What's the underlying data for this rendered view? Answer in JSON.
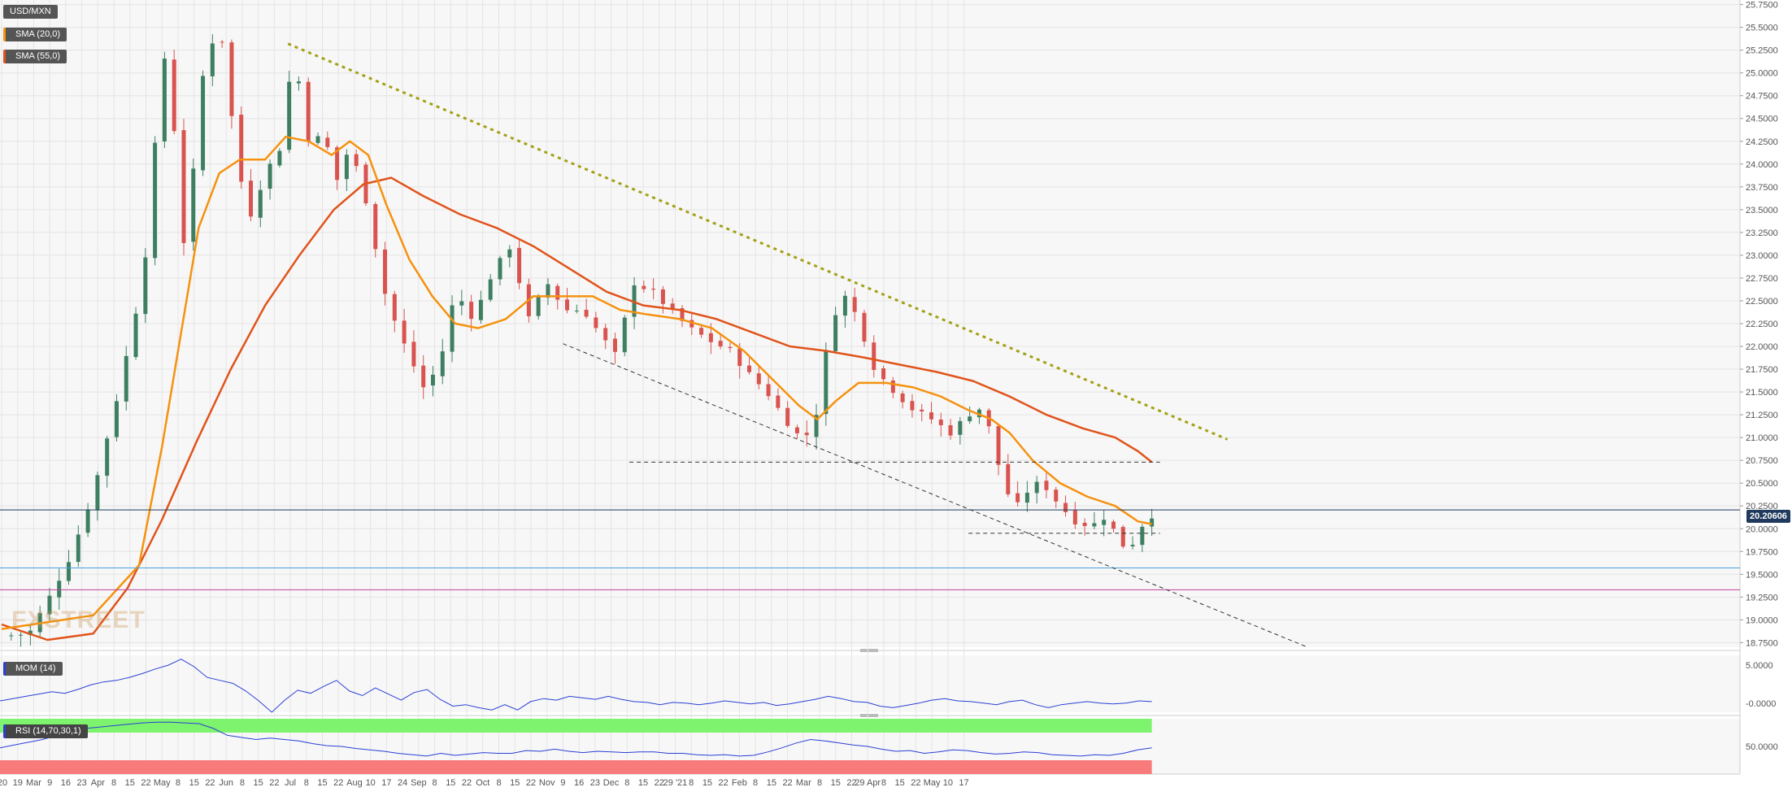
{
  "colors": {
    "background": "#f7f7f7",
    "grid": "#e4e4e4",
    "up": "#3e7f62",
    "down": "#d9534f",
    "sma20": "#f5920f",
    "sma55": "#e0541b",
    "trend_resistance": "#a3a013",
    "dashed": "#333333",
    "support_blue": "#4aa3df",
    "support_magenta": "#c2409b",
    "indicator_line": "#2b3fd6",
    "rsi_overbought": "#7ef36e",
    "rsi_oversold": "#f77b7b",
    "tag_bg": "#555555",
    "price_tag_bg": "#1f3a5c"
  },
  "labels": {
    "symbol": "USD/MXN",
    "sma20": "SMA (20,0)",
    "sma55": "SMA (55,0)",
    "mom": "MOM (14)",
    "rsi": "RSI (14,70,30,1)",
    "last_price": "20.20606",
    "watermark": "FXSTREET"
  },
  "chart_data": [
    {
      "type": "candlestick",
      "title": "USD/MXN",
      "ylim": [
        18.7,
        25.8
      ],
      "y_ticks": [
        "18.7500",
        "19.0000",
        "19.2500",
        "19.5000",
        "19.7500",
        "20.0000",
        "20.2500",
        "20.5000",
        "20.7500",
        "21.0000",
        "21.2500",
        "21.5000",
        "21.7500",
        "22.0000",
        "22.2500",
        "22.5000",
        "22.7500",
        "23.0000",
        "23.2500",
        "23.5000",
        "23.7500",
        "24.0000",
        "24.2500",
        "24.5000",
        "24.7500",
        "25.0000",
        "25.2500",
        "25.5000",
        "25.7500"
      ],
      "x_ticks": [
        "'20",
        "19",
        "Mar",
        "9",
        "16",
        "23",
        "Apr",
        "8",
        "15",
        "22",
        "May",
        "8",
        "15",
        "22",
        "Jun",
        "8",
        "15",
        "22",
        "Jul",
        "8",
        "15",
        "22",
        "Aug",
        "10",
        "17",
        "24",
        "Sep",
        "8",
        "15",
        "22",
        "Oct",
        "8",
        "15",
        "22",
        "Nov",
        "9",
        "16",
        "23",
        "Dec",
        "8",
        "15",
        "22",
        "29 '21",
        "8",
        "15",
        "22",
        "Feb",
        "8",
        "15",
        "22",
        "Mar",
        "8",
        "15",
        "22",
        "29 Apr",
        "8",
        "15",
        "22",
        "May",
        "10",
        "17"
      ],
      "last_price": 20.20606,
      "keypoints": [
        [
          0,
          18.82
        ],
        [
          12,
          18.85
        ],
        [
          22,
          19.3
        ],
        [
          30,
          19.7
        ],
        [
          40,
          20.4
        ],
        [
          52,
          21.6
        ],
        [
          62,
          22.8
        ],
        [
          68,
          24.5
        ],
        [
          72,
          25.35
        ],
        [
          80,
          23.0
        ],
        [
          88,
          25.0
        ],
        [
          95,
          25.6
        ],
        [
          103,
          24.0
        ],
        [
          108,
          23.4
        ],
        [
          115,
          23.9
        ],
        [
          122,
          24.2
        ],
        [
          126,
          25.0
        ],
        [
          130,
          24.9
        ],
        [
          135,
          24.1
        ],
        [
          140,
          24.4
        ],
        [
          146,
          23.8
        ],
        [
          152,
          24.2
        ],
        [
          159,
          23.6
        ],
        [
          168,
          22.5
        ],
        [
          176,
          22.0
        ],
        [
          185,
          21.5
        ],
        [
          192,
          21.9
        ],
        [
          198,
          22.6
        ],
        [
          206,
          22.3
        ],
        [
          214,
          22.8
        ],
        [
          222,
          23.1
        ],
        [
          230,
          22.3
        ],
        [
          238,
          22.7
        ],
        [
          246,
          22.4
        ],
        [
          254,
          22.4
        ],
        [
          262,
          22.1
        ],
        [
          268,
          21.9
        ],
        [
          276,
          22.7
        ],
        [
          284,
          22.6
        ],
        [
          292,
          22.4
        ],
        [
          300,
          22.2
        ],
        [
          310,
          22.05
        ],
        [
          318,
          21.95
        ],
        [
          326,
          21.7
        ],
        [
          334,
          21.5
        ],
        [
          342,
          21.2
        ],
        [
          350,
          20.95
        ],
        [
          356,
          21.3
        ],
        [
          362,
          22.3
        ],
        [
          368,
          22.55
        ],
        [
          374,
          22.3
        ],
        [
          380,
          21.8
        ],
        [
          386,
          21.6
        ],
        [
          392,
          21.45
        ],
        [
          398,
          21.3
        ],
        [
          406,
          21.2
        ],
        [
          414,
          21.05
        ],
        [
          420,
          21.2
        ],
        [
          426,
          21.35
        ],
        [
          432,
          21.05
        ],
        [
          436,
          20.6
        ],
        [
          442,
          20.2
        ],
        [
          450,
          20.5
        ],
        [
          456,
          20.45
        ],
        [
          462,
          20.25
        ],
        [
          470,
          20.05
        ],
        [
          478,
          20.05
        ],
        [
          482,
          20.15
        ],
        [
          486,
          19.95
        ],
        [
          490,
          19.8
        ],
        [
          494,
          19.85
        ],
        [
          498,
          20.05
        ],
        [
          502,
          20.15
        ]
      ],
      "candle_count": 120,
      "sma20_line": [
        [
          0,
          18.9
        ],
        [
          40,
          19.05
        ],
        [
          60,
          19.6
        ],
        [
          70,
          20.9
        ],
        [
          78,
          22.1
        ],
        [
          86,
          23.3
        ],
        [
          95,
          23.9
        ],
        [
          104,
          24.05
        ],
        [
          115,
          24.05
        ],
        [
          124,
          24.3
        ],
        [
          134,
          24.25
        ],
        [
          144,
          24.1
        ],
        [
          152,
          24.25
        ],
        [
          160,
          24.1
        ],
        [
          168,
          23.55
        ],
        [
          178,
          22.95
        ],
        [
          188,
          22.55
        ],
        [
          198,
          22.25
        ],
        [
          208,
          22.2
        ],
        [
          220,
          22.3
        ],
        [
          232,
          22.55
        ],
        [
          246,
          22.55
        ],
        [
          258,
          22.55
        ],
        [
          270,
          22.4
        ],
        [
          282,
          22.35
        ],
        [
          296,
          22.3
        ],
        [
          310,
          22.2
        ],
        [
          324,
          21.95
        ],
        [
          336,
          21.65
        ],
        [
          348,
          21.35
        ],
        [
          356,
          21.2
        ],
        [
          364,
          21.4
        ],
        [
          374,
          21.6
        ],
        [
          386,
          21.6
        ],
        [
          398,
          21.55
        ],
        [
          410,
          21.45
        ],
        [
          422,
          21.3
        ],
        [
          432,
          21.2
        ],
        [
          440,
          21.05
        ],
        [
          450,
          20.75
        ],
        [
          462,
          20.5
        ],
        [
          474,
          20.35
        ],
        [
          486,
          20.25
        ],
        [
          496,
          20.08
        ],
        [
          502,
          20.05
        ]
      ],
      "sma55_line": [
        [
          0,
          18.95
        ],
        [
          20,
          18.78
        ],
        [
          40,
          18.85
        ],
        [
          55,
          19.35
        ],
        [
          70,
          20.1
        ],
        [
          85,
          20.95
        ],
        [
          100,
          21.75
        ],
        [
          115,
          22.45
        ],
        [
          130,
          23.0
        ],
        [
          145,
          23.5
        ],
        [
          158,
          23.78
        ],
        [
          170,
          23.85
        ],
        [
          184,
          23.65
        ],
        [
          200,
          23.45
        ],
        [
          216,
          23.3
        ],
        [
          232,
          23.1
        ],
        [
          248,
          22.85
        ],
        [
          264,
          22.6
        ],
        [
          280,
          22.45
        ],
        [
          296,
          22.4
        ],
        [
          312,
          22.3
        ],
        [
          328,
          22.15
        ],
        [
          344,
          22.0
        ],
        [
          360,
          21.95
        ],
        [
          376,
          21.88
        ],
        [
          392,
          21.8
        ],
        [
          408,
          21.72
        ],
        [
          424,
          21.62
        ],
        [
          440,
          21.45
        ],
        [
          456,
          21.25
        ],
        [
          472,
          21.1
        ],
        [
          486,
          21.0
        ],
        [
          496,
          20.85
        ],
        [
          502,
          20.73
        ]
      ],
      "trend_resistance": {
        "from": [
          125,
          25.32
        ],
        "to": [
          535,
          20.98
        ]
      },
      "trend_support": {
        "from": [
          245,
          22.03
        ],
        "to": [
          570,
          18.7
        ]
      },
      "resistance_level": {
        "value": 20.73,
        "from": 274,
        "to": 502
      },
      "support_level": {
        "value": 19.95,
        "from": 422,
        "to": 502
      },
      "support_blue": 19.57,
      "support_magenta": 19.33
    },
    {
      "type": "line",
      "title": "MOM (14)",
      "ylim": [
        -1.2,
        6.3
      ],
      "y_ticks": [
        "5.0000",
        "-0.0000"
      ],
      "values": [
        0.3,
        0.6,
        0.9,
        1.2,
        1.5,
        1.3,
        1.8,
        2.4,
        2.8,
        3.0,
        3.4,
        3.9,
        4.5,
        5.0,
        5.8,
        4.8,
        3.4,
        3.0,
        2.6,
        1.6,
        0.3,
        -1.2,
        0.4,
        1.7,
        1.3,
        2.2,
        3.0,
        1.6,
        1.0,
        2.0,
        1.2,
        0.4,
        1.4,
        1.8,
        0.5,
        -0.4,
        -0.2,
        -0.6,
        -0.9,
        -0.2,
        -0.9,
        0.2,
        0.6,
        0.4,
        0.9,
        0.7,
        0.5,
        0.9,
        0.5,
        0.2,
        0.1,
        -0.2,
        0.1,
        0.0,
        -0.2,
        0.0,
        0.3,
        0.1,
        -0.1,
        0.1,
        -0.3,
        -0.1,
        0.2,
        0.5,
        0.9,
        0.6,
        0.2,
        0.1,
        -0.4,
        -0.6,
        -0.3,
        0.0,
        0.4,
        0.6,
        0.3,
        0.2,
        0.0,
        -0.2,
        0.2,
        0.4,
        -0.2,
        -0.6,
        -0.2,
        0.0,
        0.2,
        0.0,
        -0.1,
        0.0,
        0.3,
        0.2
      ]
    },
    {
      "type": "line",
      "title": "RSI (14,70,30,1)",
      "ylim": [
        10,
        90
      ],
      "y_ticks": [
        "50.0000"
      ],
      "overbought": 70,
      "oversold": 30,
      "values": [
        48,
        52,
        56,
        60,
        66,
        72,
        76,
        78,
        80,
        82,
        84,
        85,
        85,
        84,
        83,
        76,
        66,
        63,
        60,
        62,
        60,
        58,
        54,
        51,
        50,
        47,
        45,
        43,
        40,
        38,
        36,
        40,
        37,
        39,
        41,
        40,
        40,
        44,
        43,
        46,
        43,
        41,
        43,
        42,
        41,
        42,
        42,
        40,
        40,
        38,
        37,
        38,
        36,
        37,
        42,
        48,
        55,
        60,
        58,
        55,
        52,
        50,
        46,
        43,
        44,
        40,
        42,
        45,
        44,
        41,
        39,
        40,
        42,
        41,
        38,
        37,
        36,
        38,
        37,
        40,
        45,
        48
      ]
    }
  ]
}
